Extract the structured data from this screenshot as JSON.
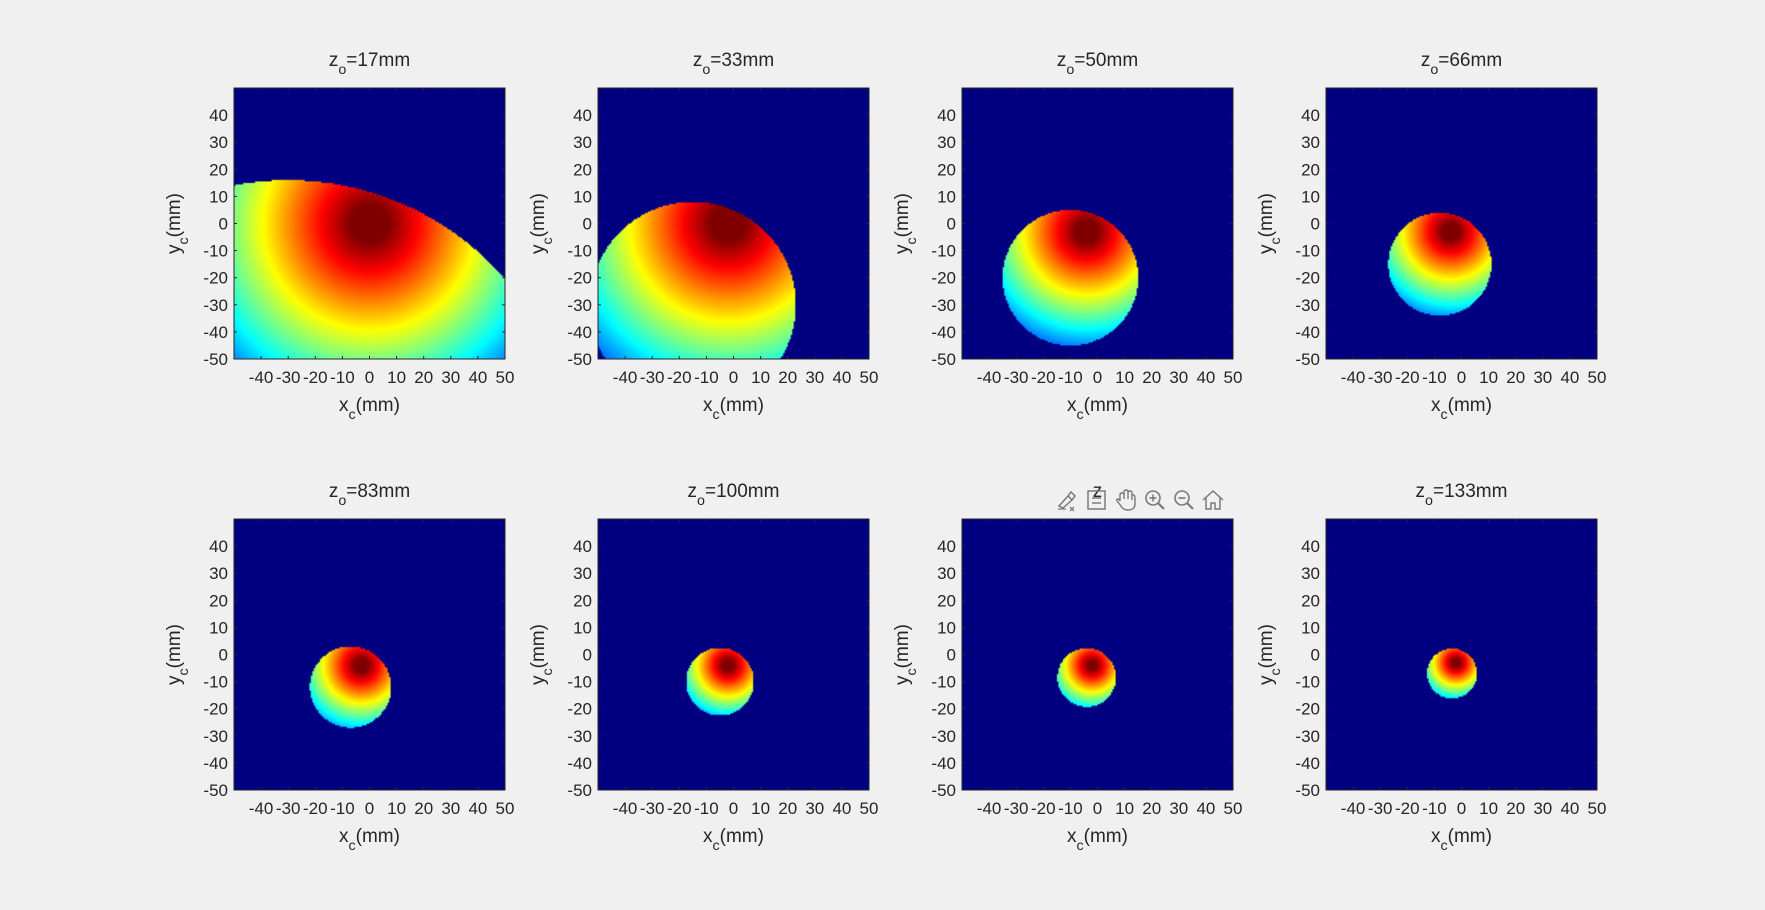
{
  "figure": {
    "background": "#f0f0f0",
    "plot_background": "#000080",
    "colormap": "jet"
  },
  "toolbar": {
    "icons": [
      "brush-icon",
      "data-tip-icon",
      "pan-hand-icon",
      "zoom-in-icon",
      "zoom-out-icon",
      "home-icon"
    ],
    "partial_title": "z"
  },
  "chart_data": [
    {
      "type": "heatmap",
      "title": "z_o=17mm",
      "title_base": "z",
      "title_sub": "o",
      "title_rest": "=17mm",
      "xlabel_base": "x",
      "xlabel_sub": "c",
      "xlabel_rest": "(mm)",
      "ylabel_base": "y",
      "ylabel_sub": "c",
      "ylabel_rest": "(mm)",
      "xlim": [
        -50,
        50
      ],
      "ylim": [
        -50,
        50
      ],
      "xticks": [
        "-40",
        "-30",
        "-20",
        "-10",
        "0",
        "10",
        "20",
        "30",
        "40",
        "50"
      ],
      "yticks": [
        "40",
        "30",
        "20",
        "10",
        "0",
        "-10",
        "-20",
        "-30",
        "-40",
        "-50"
      ],
      "disk": {
        "cx": -30,
        "cy": -90,
        "r": 106,
        "peak_x": 0,
        "peak_y": 0,
        "spread": 76
      }
    },
    {
      "type": "heatmap",
      "title": "z_o=33mm",
      "title_base": "z",
      "title_sub": "o",
      "title_rest": "=33mm",
      "xlabel_base": "x",
      "xlabel_sub": "c",
      "xlabel_rest": "(mm)",
      "ylabel_base": "y",
      "ylabel_sub": "c",
      "ylabel_rest": "(mm)",
      "xlim": [
        -50,
        50
      ],
      "ylim": [
        -50,
        50
      ],
      "xticks": [
        "-40",
        "-30",
        "-20",
        "-10",
        "0",
        "10",
        "20",
        "30",
        "40",
        "50"
      ],
      "yticks": [
        "40",
        "30",
        "20",
        "10",
        "0",
        "-10",
        "-20",
        "-30",
        "-40",
        "-50"
      ],
      "disk": {
        "cx": -15,
        "cy": -30,
        "r": 38,
        "peak_x": -2,
        "peak_y": 0,
        "spread": 70
      }
    },
    {
      "type": "heatmap",
      "title": "z_o=50mm",
      "title_base": "z",
      "title_sub": "o",
      "title_rest": "=50mm",
      "xlabel_base": "x",
      "xlabel_sub": "c",
      "xlabel_rest": "(mm)",
      "ylabel_base": "y",
      "ylabel_sub": "c",
      "ylabel_rest": "(mm)",
      "xlim": [
        -50,
        50
      ],
      "ylim": [
        -50,
        50
      ],
      "xticks": [
        "-40",
        "-30",
        "-20",
        "-10",
        "0",
        "10",
        "20",
        "30",
        "40",
        "50"
      ],
      "yticks": [
        "40",
        "30",
        "20",
        "10",
        "0",
        "-10",
        "-20",
        "-30",
        "-40",
        "-50"
      ],
      "disk": {
        "cx": -10,
        "cy": -20,
        "r": 25,
        "peak_x": -4,
        "peak_y": -3,
        "spread": 45
      }
    },
    {
      "type": "heatmap",
      "title": "z_o=66mm",
      "title_base": "z",
      "title_sub": "o",
      "title_rest": "=66mm",
      "xlabel_base": "x",
      "xlabel_sub": "c",
      "xlabel_rest": "(mm)",
      "ylabel_base": "y",
      "ylabel_sub": "c",
      "ylabel_rest": "(mm)",
      "xlim": [
        -50,
        50
      ],
      "ylim": [
        -50,
        50
      ],
      "xticks": [
        "-40",
        "-30",
        "-20",
        "-10",
        "0",
        "10",
        "20",
        "30",
        "40",
        "50"
      ],
      "yticks": [
        "40",
        "30",
        "20",
        "10",
        "0",
        "-10",
        "-20",
        "-30",
        "-40",
        "-50"
      ],
      "disk": {
        "cx": -8,
        "cy": -15,
        "r": 19,
        "peak_x": -4,
        "peak_y": -3,
        "spread": 34
      }
    },
    {
      "type": "heatmap",
      "title": "z_o=83mm",
      "title_base": "z",
      "title_sub": "o",
      "title_rest": "=83mm",
      "xlabel_base": "x",
      "xlabel_sub": "c",
      "xlabel_rest": "(mm)",
      "ylabel_base": "y",
      "ylabel_sub": "c",
      "ylabel_rest": "(mm)",
      "xlim": [
        -50,
        50
      ],
      "ylim": [
        -50,
        50
      ],
      "xticks": [
        "-40",
        "-30",
        "-20",
        "-10",
        "0",
        "10",
        "20",
        "30",
        "40",
        "50"
      ],
      "yticks": [
        "40",
        "30",
        "20",
        "10",
        "0",
        "-10",
        "-20",
        "-30",
        "-40",
        "-50"
      ],
      "disk": {
        "cx": -7,
        "cy": -12,
        "r": 15,
        "peak_x": -3,
        "peak_y": -4,
        "spread": 27
      }
    },
    {
      "type": "heatmap",
      "title": "z_o=100mm",
      "title_base": "z",
      "title_sub": "o",
      "title_rest": "=100mm",
      "xlabel_base": "x",
      "xlabel_sub": "c",
      "xlabel_rest": "(mm)",
      "ylabel_base": "y",
      "ylabel_sub": "c",
      "ylabel_rest": "(mm)",
      "xlim": [
        -50,
        50
      ],
      "ylim": [
        -50,
        50
      ],
      "xticks": [
        "-40",
        "-30",
        "-20",
        "-10",
        "0",
        "10",
        "20",
        "30",
        "40",
        "50"
      ],
      "yticks": [
        "40",
        "30",
        "20",
        "10",
        "0",
        "-10",
        "-20",
        "-30",
        "-40",
        "-50"
      ],
      "disk": {
        "cx": -5,
        "cy": -10,
        "r": 12.5,
        "peak_x": -2,
        "peak_y": -4,
        "spread": 22
      }
    },
    {
      "type": "heatmap",
      "title": "z",
      "title_base": "z",
      "title_sub": "",
      "title_rest": "",
      "xlabel_base": "x",
      "xlabel_sub": "c",
      "xlabel_rest": "(mm)",
      "ylabel_base": "y",
      "ylabel_sub": "c",
      "ylabel_rest": "(mm)",
      "xlim": [
        -50,
        50
      ],
      "ylim": [
        -50,
        50
      ],
      "xticks": [
        "-40",
        "-30",
        "-20",
        "-10",
        "0",
        "10",
        "20",
        "30",
        "40",
        "50"
      ],
      "yticks": [
        "40",
        "30",
        "20",
        "10",
        "0",
        "-10",
        "-20",
        "-30",
        "-40",
        "-50"
      ],
      "disk": {
        "cx": -4,
        "cy": -8.5,
        "r": 10.8,
        "peak_x": -2,
        "peak_y": -4,
        "spread": 19
      }
    },
    {
      "type": "heatmap",
      "title": "z_o=133mm",
      "title_base": "z",
      "title_sub": "o",
      "title_rest": "=133mm",
      "xlabel_base": "x",
      "xlabel_sub": "c",
      "xlabel_rest": "(mm)",
      "ylabel_base": "y",
      "ylabel_sub": "c",
      "ylabel_rest": "(mm)",
      "xlim": [
        -50,
        50
      ],
      "ylim": [
        -50,
        50
      ],
      "xticks": [
        "-40",
        "-30",
        "-20",
        "-10",
        "0",
        "10",
        "20",
        "30",
        "40",
        "50"
      ],
      "yticks": [
        "40",
        "30",
        "20",
        "10",
        "0",
        "-10",
        "-20",
        "-30",
        "-40",
        "-50"
      ],
      "disk": {
        "cx": -3.5,
        "cy": -7,
        "r": 9.2,
        "peak_x": -2,
        "peak_y": -3,
        "spread": 16
      }
    }
  ]
}
